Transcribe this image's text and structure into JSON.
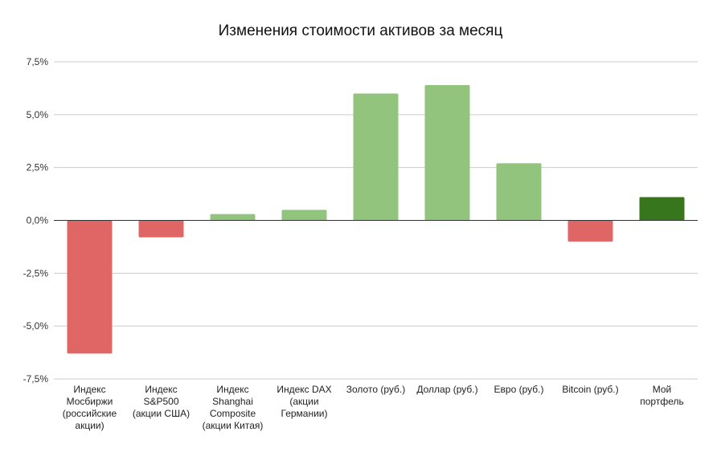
{
  "chart_data": {
    "type": "bar",
    "title": "Изменения стоимости активов за месяц",
    "xlabel": "",
    "ylabel": "",
    "ylim": [
      -7.5,
      7.5
    ],
    "yticks": [
      7.5,
      5.0,
      2.5,
      0.0,
      -2.5,
      -5.0,
      -7.5
    ],
    "ytick_labels": [
      "7,5%",
      "5,0%",
      "2,5%",
      "0,0%",
      "-2,5%",
      "-5,0%",
      "-7,5%"
    ],
    "grid": true,
    "legend": "none",
    "categories": [
      [
        "Индекс",
        "Мосбиржи",
        "(российские",
        "акции)"
      ],
      [
        "Индекс",
        "S&P500",
        "(акции США)"
      ],
      [
        "Индекс",
        "Shanghai",
        "Composite",
        "(акции Китая)"
      ],
      [
        "Индекс DAX",
        "(акции",
        "Германии)"
      ],
      [
        "Золото (руб.)"
      ],
      [
        "Доллар (руб.)"
      ],
      [
        "Евро (руб.)"
      ],
      [
        "Bitcoin (руб.)"
      ],
      [
        "Мой",
        "портфель"
      ]
    ],
    "values": [
      -6.3,
      -0.8,
      0.3,
      0.5,
      6.0,
      6.4,
      2.7,
      -1.0,
      1.1
    ],
    "colors": {
      "negative": "#e06666",
      "positive": "#93c47d",
      "portfolio": "#38761d",
      "grid": "#cccccc",
      "axis": "#333333"
    }
  }
}
